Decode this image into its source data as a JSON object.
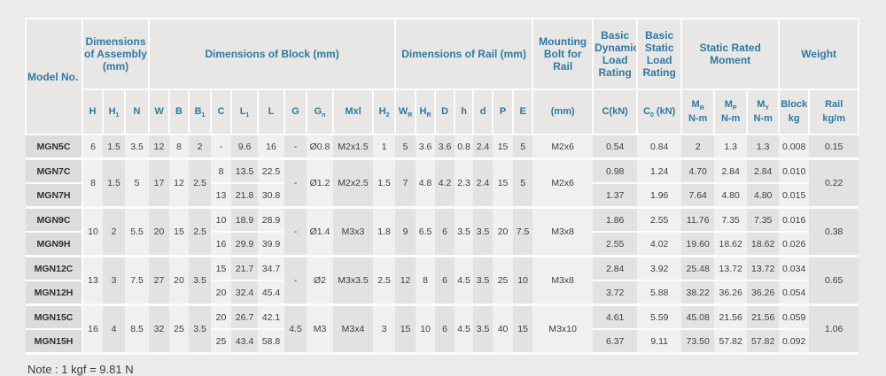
{
  "colors": {
    "accent_teal": "#2e79a3",
    "stripe_light": "#f1f0ee",
    "stripe_dark": "#e3e2e0",
    "model_cell": "#dddcda",
    "page_background": "#ecebe9"
  },
  "table": {
    "header": {
      "model_label": "Model No.",
      "groups": [
        {
          "label": "Dimensions of Assembly (mm)",
          "span": 3
        },
        {
          "label": "Dimensions of Block (mm)",
          "span": 10
        },
        {
          "label": "Dimensions of Rail (mm)",
          "span": 7
        },
        {
          "label": "Mounting Bolt for Rail",
          "span": 1
        },
        {
          "label": "Basic Dynamic Load Rating",
          "span": 1
        },
        {
          "label": "Basic Static Load Rating",
          "span": 1
        },
        {
          "label": "Static Rated Moment",
          "span": 3
        },
        {
          "label": "Weight",
          "span": 2
        }
      ],
      "columns": [
        {
          "key": "H",
          "t": "H"
        },
        {
          "key": "H1",
          "t": "H",
          "s": "1"
        },
        {
          "key": "N",
          "t": "N"
        },
        {
          "key": "W",
          "t": "W"
        },
        {
          "key": "B",
          "t": "B"
        },
        {
          "key": "B1",
          "t": "B",
          "s": "1"
        },
        {
          "key": "C",
          "t": "C"
        },
        {
          "key": "L1",
          "t": "L",
          "s": "1"
        },
        {
          "key": "L",
          "t": "L"
        },
        {
          "key": "G",
          "t": "G"
        },
        {
          "key": "Gn",
          "t": "G",
          "s": "n"
        },
        {
          "key": "Mxl",
          "t": "Mxl"
        },
        {
          "key": "H2",
          "t": "H",
          "s": "2"
        },
        {
          "key": "WR",
          "t": "W",
          "s": "R"
        },
        {
          "key": "HR",
          "t": "H",
          "s": "R"
        },
        {
          "key": "D",
          "t": "D"
        },
        {
          "key": "h",
          "t": "h"
        },
        {
          "key": "d",
          "t": "d"
        },
        {
          "key": "P",
          "t": "P"
        },
        {
          "key": "E",
          "t": "E"
        },
        {
          "key": "bolt",
          "t": "(mm)"
        },
        {
          "key": "Ck",
          "t": "C(kN)"
        },
        {
          "key": "C0",
          "t": "C",
          "s": "0",
          "a": " (kN)"
        },
        {
          "key": "MR",
          "t": "M",
          "s": "R",
          "l2": "N-m"
        },
        {
          "key": "MP",
          "t": "M",
          "s": "P",
          "l2": "N-m"
        },
        {
          "key": "MY",
          "t": "M",
          "s": "Y",
          "l2": "N-m"
        },
        {
          "key": "block",
          "t": "Block",
          "l2": "kg"
        },
        {
          "key": "rail",
          "t": "Rail",
          "l2": "kg/m"
        }
      ]
    },
    "groups": [
      {
        "shared": {
          "H": "6",
          "H1": "1.5",
          "N": "3.5",
          "W": "12",
          "B": "8",
          "B1": "2",
          "G": "-",
          "Gn": "Ø0.8",
          "Mxl": "M2x1.5",
          "H2": "1",
          "WR": "5",
          "HR": "3.6",
          "D": "3.6",
          "h": "0.8",
          "d": "2.4",
          "P": "15",
          "E": "5",
          "bolt": "M2x6",
          "rail": "0.15"
        },
        "rows": [
          {
            "model": "MGN5C",
            "C": "-",
            "L1": "9.6",
            "L": "16",
            "Ck": "0.54",
            "C0": "0.84",
            "MR": "2",
            "MP": "1.3",
            "MY": "1.3",
            "block": "0.008"
          }
        ]
      },
      {
        "shared": {
          "H": "8",
          "H1": "1.5",
          "N": "5",
          "W": "17",
          "B": "12",
          "B1": "2.5",
          "G": "-",
          "Gn": "Ø1.2",
          "Mxl": "M2x2.5",
          "H2": "1.5",
          "WR": "7",
          "HR": "4.8",
          "D": "4.2",
          "h": "2.3",
          "d": "2.4",
          "P": "15",
          "E": "5",
          "bolt": "M2x6",
          "rail": "0.22"
        },
        "rows": [
          {
            "model": "MGN7C",
            "C": "8",
            "L1": "13.5",
            "L": "22.5",
            "Ck": "0.98",
            "C0": "1.24",
            "MR": "4.70",
            "MP": "2.84",
            "MY": "2.84",
            "block": "0.010"
          },
          {
            "model": "MGN7H",
            "C": "13",
            "L1": "21.8",
            "L": "30.8",
            "Ck": "1.37",
            "C0": "1.96",
            "MR": "7.64",
            "MP": "4.80",
            "MY": "4.80",
            "block": "0.015"
          }
        ]
      },
      {
        "shared": {
          "H": "10",
          "H1": "2",
          "N": "5.5",
          "W": "20",
          "B": "15",
          "B1": "2.5",
          "G": "-",
          "Gn": "Ø1.4",
          "Mxl": "M3x3",
          "H2": "1.8",
          "WR": "9",
          "HR": "6.5",
          "D": "6",
          "h": "3.5",
          "d": "3.5",
          "P": "20",
          "E": "7.5",
          "bolt": "M3x8",
          "rail": "0.38"
        },
        "rows": [
          {
            "model": "MGN9C",
            "C": "10",
            "L1": "18.9",
            "L": "28.9",
            "Ck": "1.86",
            "C0": "2.55",
            "MR": "11.76",
            "MP": "7.35",
            "MY": "7.35",
            "block": "0.016"
          },
          {
            "model": "MGN9H",
            "C": "16",
            "L1": "29.9",
            "L": "39.9",
            "Ck": "2.55",
            "C0": "4.02",
            "MR": "19.60",
            "MP": "18.62",
            "MY": "18.62",
            "block": "0.026"
          }
        ]
      },
      {
        "shared": {
          "H": "13",
          "H1": "3",
          "N": "7.5",
          "W": "27",
          "B": "20",
          "B1": "3.5",
          "G": "-",
          "Gn": "Ø2",
          "Mxl": "M3x3.5",
          "H2": "2.5",
          "WR": "12",
          "HR": "8",
          "D": "6",
          "h": "4.5",
          "d": "3.5",
          "P": "25",
          "E": "10",
          "bolt": "M3x8",
          "rail": "0.65"
        },
        "rows": [
          {
            "model": "MGN12C",
            "C": "15",
            "L1": "21.7",
            "L": "34.7",
            "Ck": "2.84",
            "C0": "3.92",
            "MR": "25.48",
            "MP": "13.72",
            "MY": "13.72",
            "block": "0.034"
          },
          {
            "model": "MGN12H",
            "C": "20",
            "L1": "32.4",
            "L": "45.4",
            "Ck": "3.72",
            "C0": "5.88",
            "MR": "38.22",
            "MP": "36.26",
            "MY": "36.26",
            "block": "0.054"
          }
        ]
      },
      {
        "shared": {
          "H": "16",
          "H1": "4",
          "N": "8.5",
          "W": "32",
          "B": "25",
          "B1": "3.5",
          "G": "4.5",
          "Gn": "M3",
          "Mxl": "M3x4",
          "H2": "3",
          "WR": "15",
          "HR": "10",
          "D": "6",
          "h": "4.5",
          "d": "3.5",
          "P": "40",
          "E": "15",
          "bolt": "M3x10",
          "rail": "1.06"
        },
        "rows": [
          {
            "model": "MGN15C",
            "C": "20",
            "L1": "26.7",
            "L": "42.1",
            "Ck": "4.61",
            "C0": "5.59",
            "MR": "45.08",
            "MP": "21.56",
            "MY": "21.56",
            "block": "0.059"
          },
          {
            "model": "MGN15H",
            "C": "25",
            "L1": "43.4",
            "L": "58.8",
            "Ck": "6.37",
            "C0": "9.11",
            "MR": "73.50",
            "MP": "57.82",
            "MY": "57.82",
            "block": "0.092"
          }
        ]
      }
    ],
    "note": "Note : 1 kgf = 9.81 N"
  }
}
